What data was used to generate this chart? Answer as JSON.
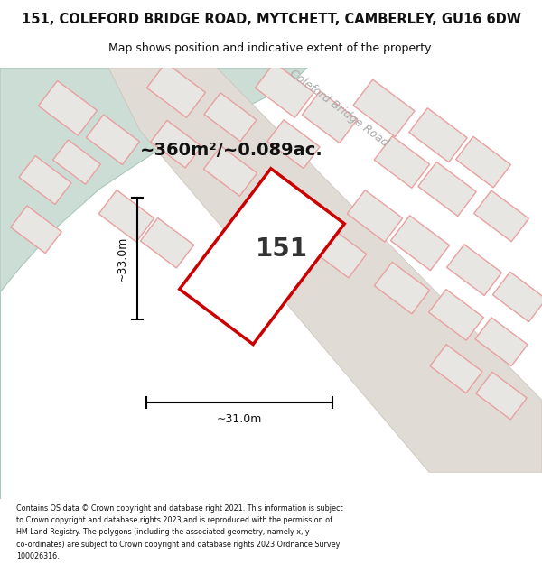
{
  "title_line1": "151, COLEFORD BRIDGE ROAD, MYTCHETT, CAMBERLEY, GU16 6DW",
  "title_line2": "Map shows position and indicative extent of the property.",
  "area_label": "~360m²/~0.089ac.",
  "property_number": "151",
  "dim_vertical": "~33.0m",
  "dim_horizontal": "~31.0m",
  "street_label": "Coleford Bridge Road",
  "footer_lines": [
    "Contains OS data © Crown copyright and database right 2021. This information is subject",
    "to Crown copyright and database rights 2023 and is reproduced with the permission of",
    "HM Land Registry. The polygons (including the associated geometry, namely x, y",
    "co-ordinates) are subject to Crown copyright and database rights 2023 Ordnance Survey",
    "100026316."
  ],
  "map_bg": "#f2f0ed",
  "water_color": "#ccddd5",
  "property_fill": "#ffffff",
  "property_edge": "#cc0000",
  "neighbor_edge": "#e8a0a0",
  "neighbor_fill": "#e8e6e2",
  "road_fill": "#e0dbd4"
}
